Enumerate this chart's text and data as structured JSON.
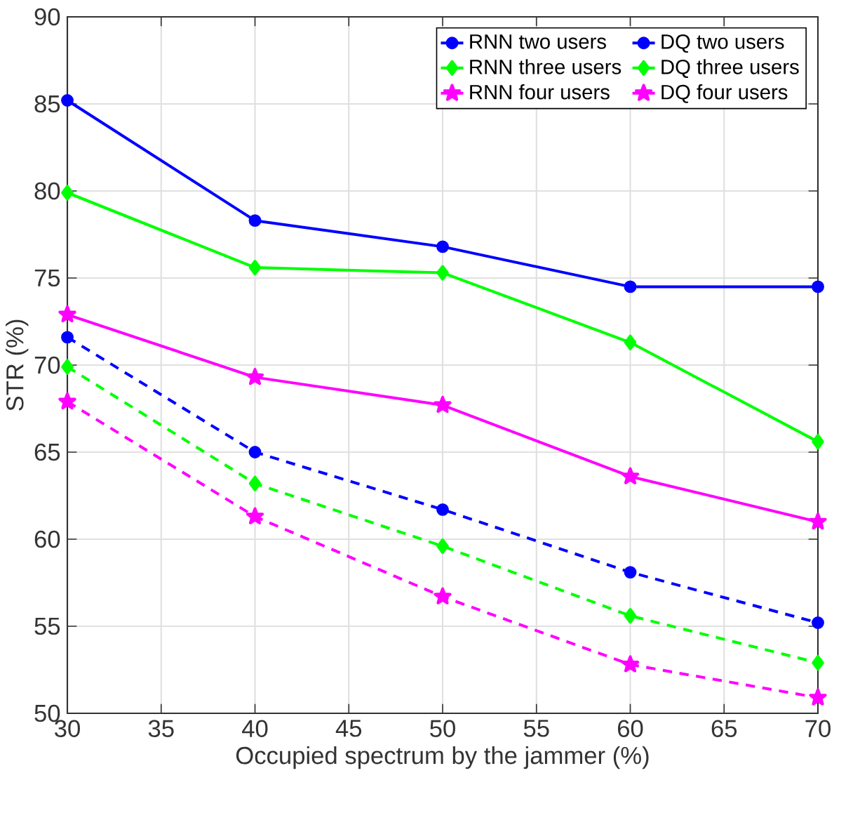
{
  "chart_data": {
    "type": "line",
    "xlabel": "Occupied spectrum by the jammer (%)",
    "ylabel": "STR (%)",
    "x": [
      30,
      40,
      50,
      60,
      70
    ],
    "xlim": [
      30,
      70
    ],
    "xticks": [
      30,
      35,
      40,
      45,
      50,
      55,
      60,
      65,
      70
    ],
    "ylim": [
      50,
      90
    ],
    "yticks": [
      50,
      55,
      60,
      65,
      70,
      75,
      80,
      85,
      90
    ],
    "grid": true,
    "legend": "top right",
    "series": [
      {
        "name": "RNN two users",
        "color": "#0000ff",
        "marker": "circle",
        "line_style": "solid",
        "values": [
          85.2,
          78.3,
          76.8,
          74.5,
          74.5
        ]
      },
      {
        "name": "DQ two users",
        "color": "#0000ff",
        "marker": "circle",
        "line_style": "dashed",
        "values": [
          71.6,
          65.0,
          61.7,
          58.1,
          55.2
        ]
      },
      {
        "name": "RNN three users",
        "color": "#00ff00",
        "marker": "diamond",
        "line_style": "solid",
        "values": [
          79.9,
          75.6,
          75.3,
          71.3,
          65.6
        ]
      },
      {
        "name": "DQ three users",
        "color": "#00ff00",
        "marker": "diamond",
        "line_style": "dashed",
        "values": [
          69.9,
          63.2,
          59.6,
          55.6,
          52.9
        ]
      },
      {
        "name": "RNN four users",
        "color": "#ff00ff",
        "marker": "star",
        "line_style": "solid",
        "values": [
          72.9,
          69.3,
          67.7,
          63.6,
          61.0
        ]
      },
      {
        "name": "DQ four users",
        "color": "#ff00ff",
        "marker": "star",
        "line_style": "dashed",
        "values": [
          67.9,
          61.3,
          56.7,
          52.8,
          50.9
        ]
      }
    ]
  }
}
